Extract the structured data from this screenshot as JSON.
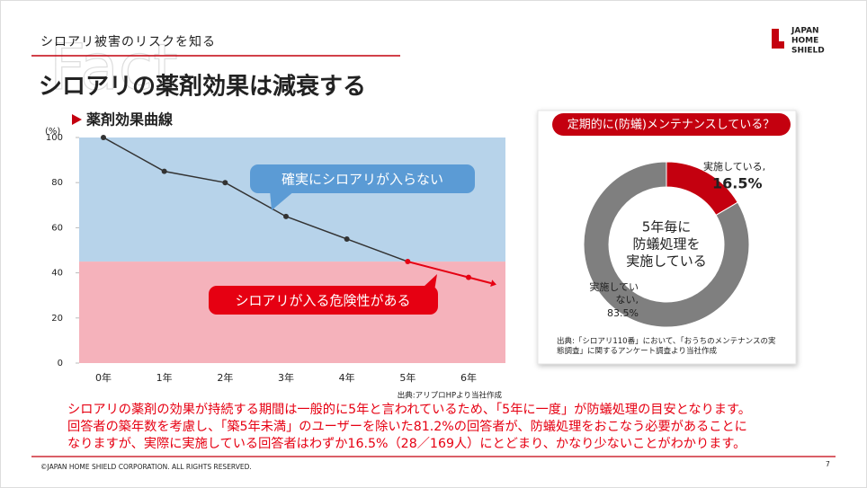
{
  "header": {
    "category": "シロアリ被害のリスクを知る",
    "title": "シロアリの薬剤効果は減衰する",
    "watermark": "Fact",
    "logo": [
      "JAPAN",
      "HOME",
      "SHIELD"
    ]
  },
  "chart_data": [
    {
      "type": "line",
      "title": "薬剤効果曲線",
      "y_unit": "(%)",
      "categories": [
        "0年",
        "1年",
        "2年",
        "3年",
        "4年",
        "5年",
        "6年"
      ],
      "values": [
        100,
        85,
        80,
        65,
        55,
        45,
        38
      ],
      "color": "#333333",
      "alert_color": "#e60012",
      "ylim": [
        0,
        100
      ],
      "yticks": [
        0,
        20,
        40,
        60,
        80,
        100
      ],
      "danger_threshold": 45,
      "annotations": [
        "確実にシロアリが入らない",
        "シロアリが入る危険性がある"
      ],
      "source": "出典:アリプロHPより当社作成"
    },
    {
      "type": "pie",
      "title": "定期的に(防蟻)メンテナンスしている？",
      "categories": [
        "実施している,",
        "実施していない,"
      ],
      "values": [
        16.5,
        83.5
      ],
      "value_labels": [
        "16.5%",
        "83.5%"
      ],
      "colors": [
        "#c4000f",
        "#7f7f7f"
      ],
      "center_text": [
        "5年毎に",
        "防蟻処理を",
        "実施している"
      ],
      "source": "出典:「シロアリ110番」において、「おうちのメンテナンスの実態調査」に関するアンケート調査より当社作成"
    }
  ],
  "body": [
    "シロアリの薬剤の効果が持続する期間は一般的に5年と言われているため、「5年に一度」が防蟻処理の目安となります。",
    "回答者の築年数を考慮し、「築5年未満」のユーザーを除いた81.2%の回答者が、防蟻処理をおこなう必要があることに",
    "なりますが、実際に実施している回答者はわずか16.5%（28／169人）にとどまり、かなり少ないことがわかります。"
  ],
  "footer": {
    "copyright": "©JAPAN HOME SHIELD CORPORATION.  ALL RIGHTS RESERVED.",
    "page": "7"
  }
}
